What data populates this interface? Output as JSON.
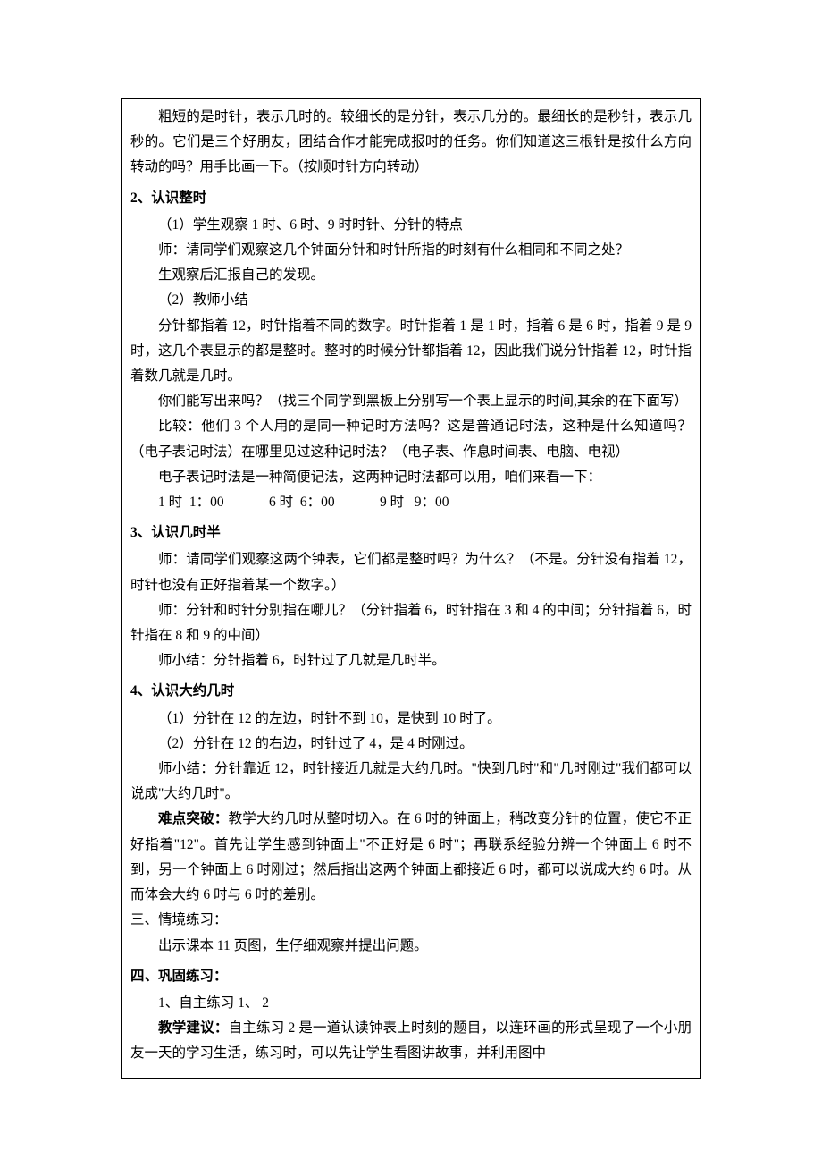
{
  "text_color": "#000000",
  "background_color": "#ffffff",
  "border_color": "#000000",
  "font_family": "SimSun",
  "base_fontsize": 15.5,
  "line_height": 1.82,
  "intro_p1": "粗短的是时针，表示几时的。较细长的是分针，表示几分的。最细长的是秒针，表示几秒的。它们是三个好朋友，团结合作才能完成报时的任务。你们知道这三根针是按什么方向转动的吗？用手比画一下。（按顺时针方向转动）",
  "h2": "2、认识整时",
  "s2_p1": "（1）学生观察 1 时、6 时、9 时时针、分针的特点",
  "s2_p2": "师：请同学们观察这几个钟面分针和时针所指的时刻有什么相同和不同之处？",
  "s2_p3": "生观察后汇报自己的发现。",
  "s2_p4": "（2）教师小结",
  "s2_p5": "分针都指着 12，时针指着不同的数字。时针指着 1 是 1 时，指着 6 是 6 时，指着 9 是 9 时，这几个表显示的都是整时。整时的时候分针都指着 12，因此我们说分针指着 12，时针指着数几就是几时。",
  "s2_p6": "你们能写出来吗？（找三个同学到黑板上分别写一个表上显示的时间,其余的在下面写）",
  "s2_p7": "比较：他们 3 个人用的是同一种记时方法吗？这是普通记时法，这种是什么知道吗？（电子表记时法）在哪里见过这种记时法？（电子表、作息时间表、电脑、电视）",
  "s2_p8": "电子表记时法是一种简便记法，这两种记时法都可以用，咱们来看一下：",
  "s2_times": "1 时  1：00             6 时  6：00             9 时   9：00",
  "h3": "3、认识几时半",
  "s3_p1": "师：请同学们观察这两个钟表，它们都是整时吗？为什么？（不是。分针没有指着 12，时针也没有正好指着某一个数字。）",
  "s3_p2": "师：分针和时针分别指在哪儿？（分针指着 6，时针指在 3 和 4 的中间；分针指着 6，时针指在 8 和 9 的中间）",
  "s3_p3": "师小结：分针指着 6，时针过了几就是几时半。",
  "h4": "4、认识大约几时",
  "s4_p1": "（1）分针在 12 的左边，时针不到 10，是快到 10 时了。",
  "s4_p2": "（2）分针在 12 的右边，时针过了 4，是 4 时刚过。",
  "s4_p3": "师小结：分针靠近 12，时针接近几就是大约几时。\"快到几时\"和\"几时刚过\"我们都可以说成\"大约几时\"。",
  "s4_nd_label": "难点突破：",
  "s4_nd_text": "教学大约几时从整时切入。在 6 时的钟面上，稍改变分针的位置，使它不正好指着\"12\"。首先让学生感到钟面上\"不正好是 6 时\"；再联系经验分辨一个钟面上 6 时不到，另一个钟面上 6 时刚过；然后指出这两个钟面上都接近 6 时，都可以说成大约 6 时。从而体会大约 6 时与 6 时的差别。",
  "h_situ": "三、情境练习：",
  "situ_p1": "出示课本 11 页图，生仔细观察并提出问题。",
  "h_consol": "四、巩固练习：",
  "consol_p1": "1、自主练习 1、 2",
  "consol_label": "教学建议：",
  "consol_text": "自主练习 2 是一道认读钟表上时刻的题目，以连环画的形式呈现了一个小朋友一天的学习生活，练习时，可以先让学生看图讲故事，并利用图中"
}
